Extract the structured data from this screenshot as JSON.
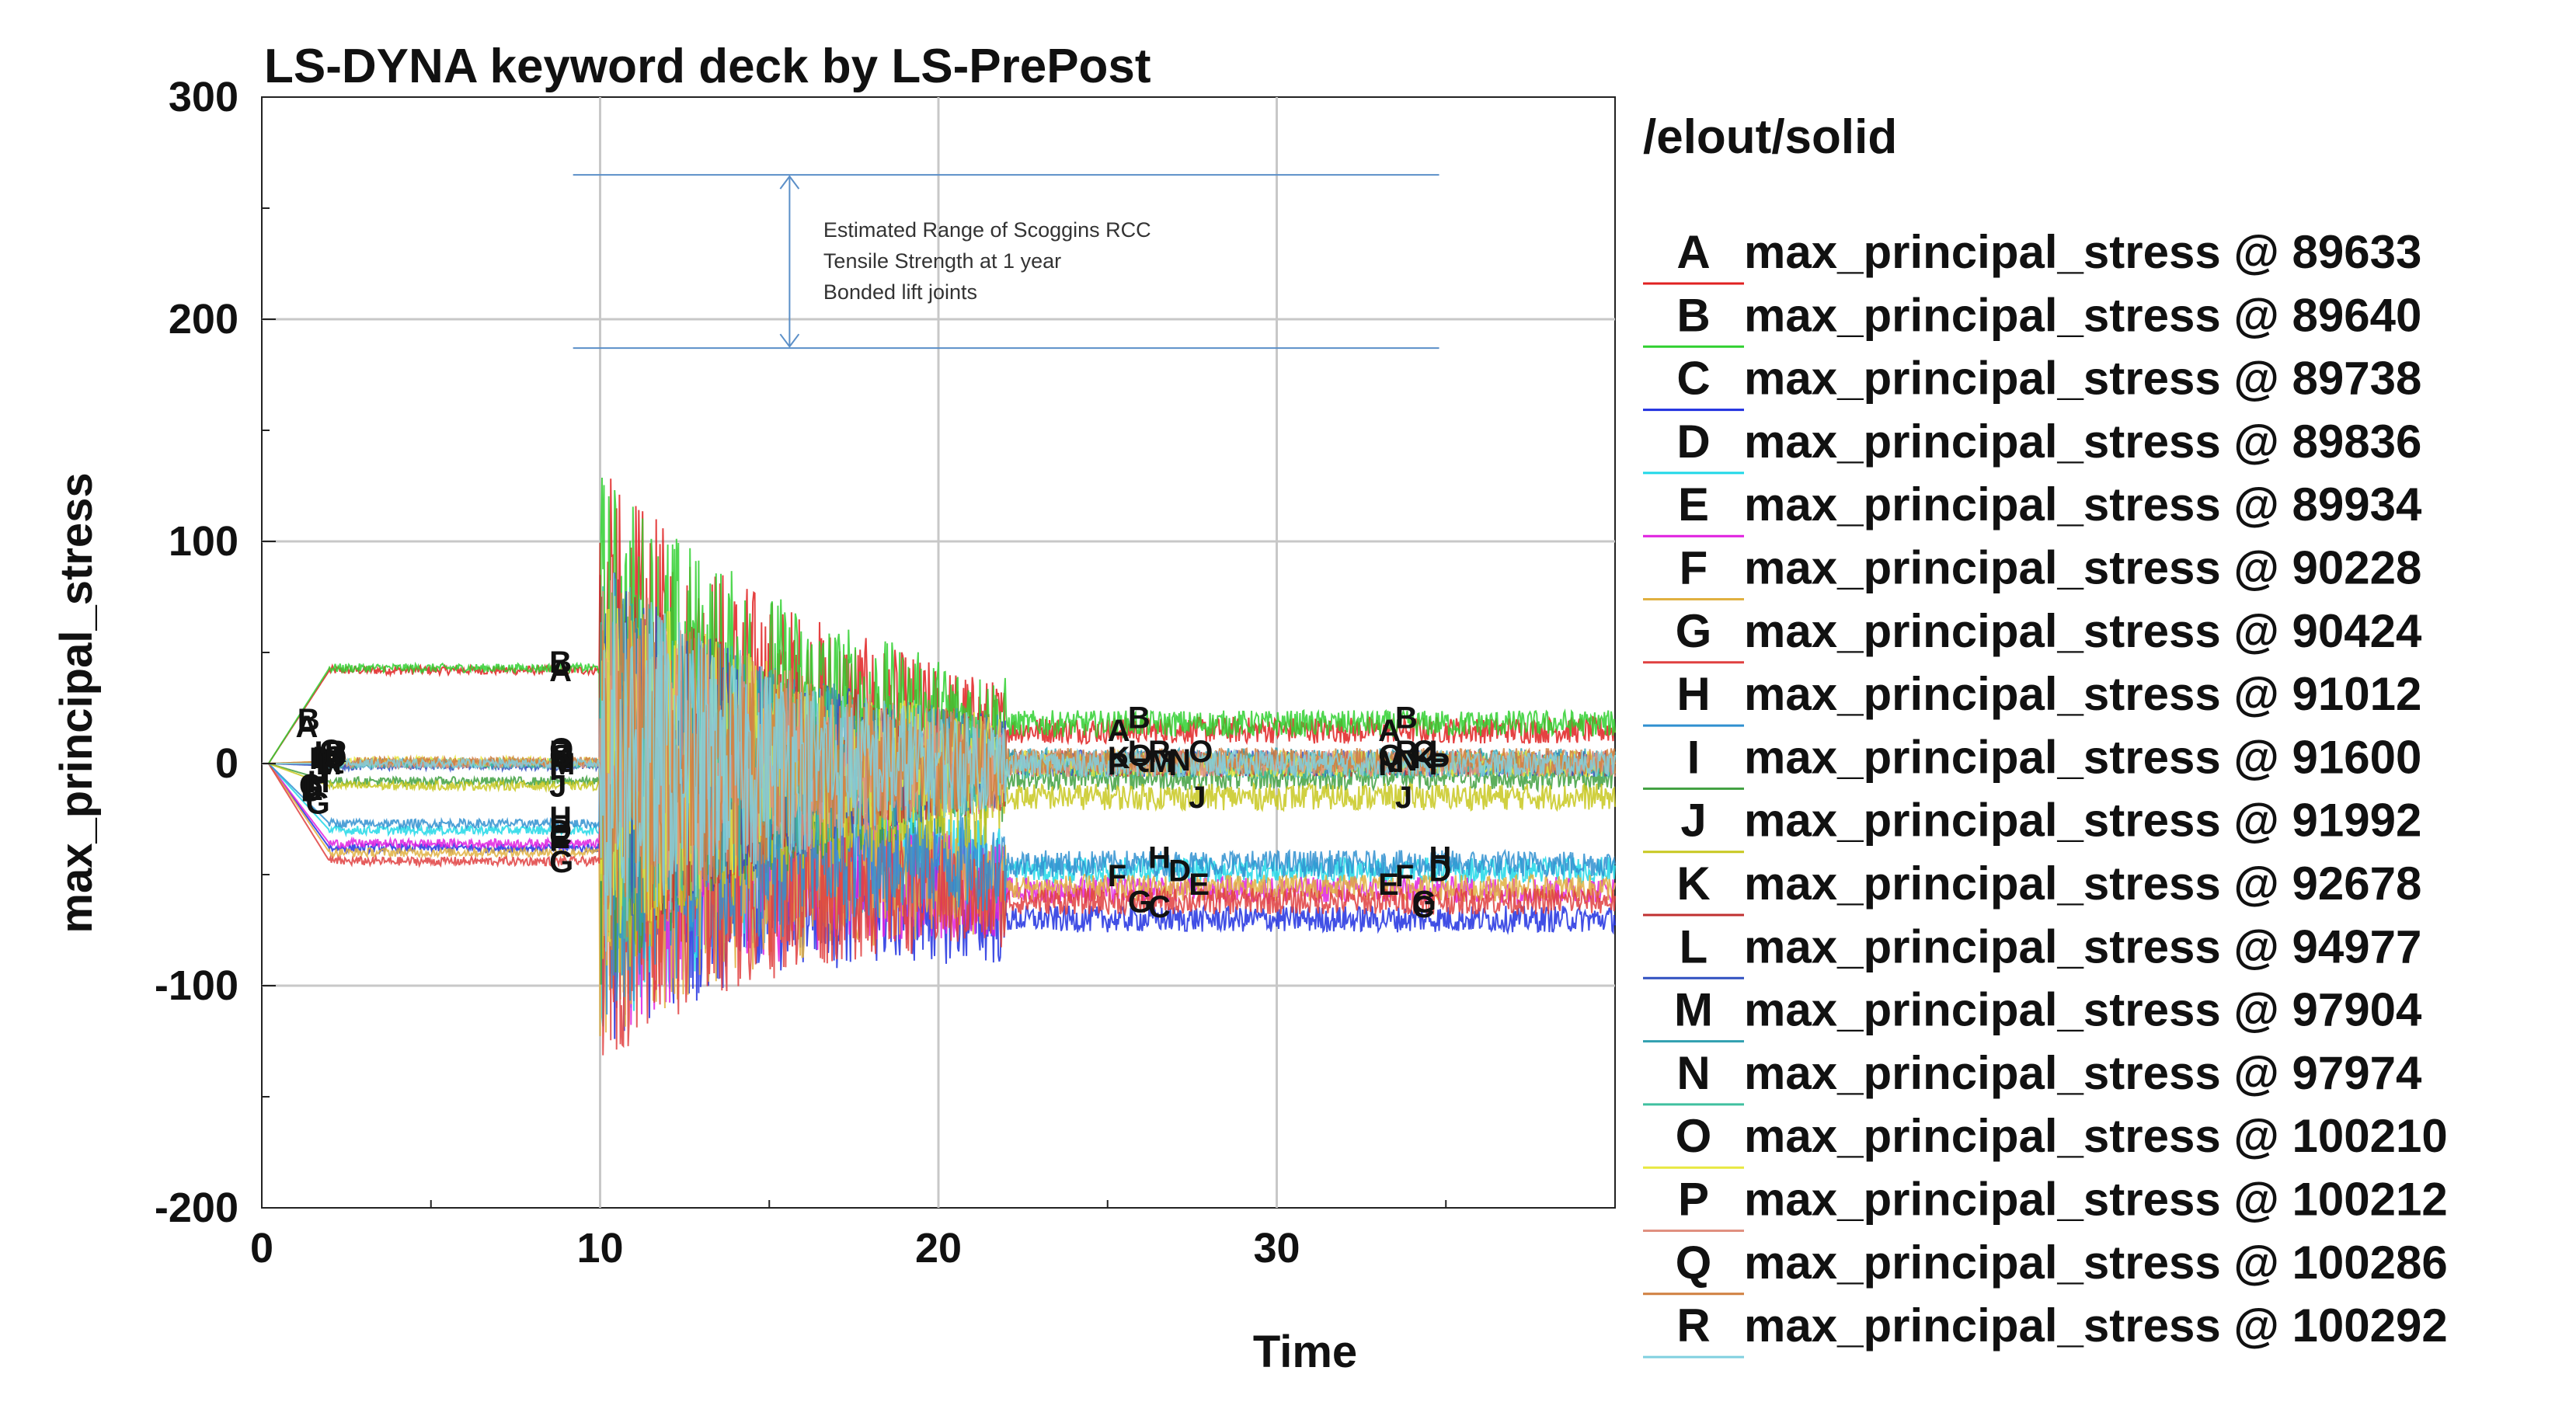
{
  "chart_data": {
    "type": "line",
    "title": "LS-DYNA keyword deck by LS-PrePost",
    "xlabel": "Time",
    "ylabel": "max_principal_stress",
    "xlim": [
      0,
      40
    ],
    "ylim": [
      -200,
      300
    ],
    "x_ticks": [
      0,
      10,
      20,
      30
    ],
    "y_ticks": [
      300,
      200,
      100,
      0,
      -100,
      -200
    ],
    "grid": true,
    "legend_title": "/elout/solid",
    "legend_position": "right",
    "annotation": {
      "lines": [
        "Estimated Range of Scoggins RCC",
        "Tensile Strength at 1 year",
        "Bonded lift joints"
      ],
      "range": [
        187,
        265
      ],
      "x_range": [
        9.2,
        34.8
      ]
    },
    "series": [
      {
        "label": "A",
        "name": "max_principal_stress @ 89633",
        "color": "#e02020",
        "plateau": 42,
        "late": 15
      },
      {
        "label": "B",
        "name": "max_principal_stress @ 89640",
        "color": "#30d030",
        "plateau": 43,
        "late": 18
      },
      {
        "label": "C",
        "name": "max_principal_stress @ 89738",
        "color": "#2030e0",
        "plateau": -38,
        "late": -70
      },
      {
        "label": "D",
        "name": "max_principal_stress @ 89836",
        "color": "#20d8e8",
        "plateau": -30,
        "late": -48
      },
      {
        "label": "E",
        "name": "max_principal_stress @ 89934",
        "color": "#e020e0",
        "plateau": -36,
        "late": -57
      },
      {
        "label": "F",
        "name": "max_principal_stress @ 90228",
        "color": "#e0b040",
        "plateau": -40,
        "late": -56
      },
      {
        "label": "G",
        "name": "max_principal_stress @ 90424",
        "color": "#e04040",
        "plateau": -44,
        "late": -62
      },
      {
        "label": "H",
        "name": "max_principal_stress @ 91012",
        "color": "#3090d0",
        "plateau": -27,
        "late": -45
      },
      {
        "label": "I",
        "name": "max_principal_stress @ 91600",
        "color": "#40a040",
        "plateau": -8,
        "late": -6
      },
      {
        "label": "J",
        "name": "max_principal_stress @ 91992",
        "color": "#c8c820",
        "plateau": -10,
        "late": -15
      },
      {
        "label": "K",
        "name": "max_principal_stress @ 92678",
        "color": "#c03030",
        "plateau": 0,
        "late": 0
      },
      {
        "label": "L",
        "name": "max_principal_stress @ 94977",
        "color": "#3050c0",
        "plateau": -1,
        "late": 0
      },
      {
        "label": "M",
        "name": "max_principal_stress @ 97904",
        "color": "#30a0b0",
        "plateau": 0,
        "late": 1
      },
      {
        "label": "N",
        "name": "max_principal_stress @ 97974",
        "color": "#40c0a0",
        "plateau": 0,
        "late": -1
      },
      {
        "label": "O",
        "name": "max_principal_stress @ 100210",
        "color": "#e8e840",
        "plateau": 1,
        "late": 0
      },
      {
        "label": "P",
        "name": "max_principal_stress @ 100212",
        "color": "#e09080",
        "plateau": 0,
        "late": 0
      },
      {
        "label": "Q",
        "name": "max_principal_stress @ 100286",
        "color": "#d08040",
        "plateau": 1,
        "late": 1
      },
      {
        "label": "R",
        "name": "max_principal_stress @ 100292",
        "color": "#80d0e0",
        "plateau": 0,
        "late": 0
      }
    ]
  }
}
